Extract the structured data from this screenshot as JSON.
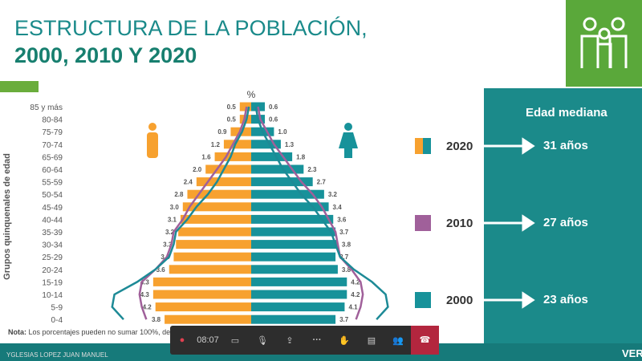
{
  "title": {
    "line1": "ESTRUCTURA DE LA  POBLACIÓN,",
    "line2": "2000, 2010 Y 2020"
  },
  "chart_data": {
    "type": "bar",
    "subtype": "population-pyramid",
    "title": "",
    "xlabel": "%",
    "ylabel": "Grupos quinquenales de edad",
    "categories": [
      "85 y más",
      "80-84",
      "75-79",
      "70-74",
      "65-69",
      "60-64",
      "55-59",
      "50-54",
      "45-49",
      "40-44",
      "35-39",
      "30-34",
      "25-29",
      "20-24",
      "15-19",
      "10-14",
      "5-9",
      "0-4"
    ],
    "series": [
      {
        "name": "2020",
        "sex": "hombres",
        "color": "#f7a12f",
        "values": [
          0.5,
          0.5,
          0.9,
          1.2,
          1.6,
          2.0,
          2.4,
          2.8,
          3.0,
          3.1,
          3.2,
          3.3,
          3.4,
          3.6,
          4.3,
          4.3,
          4.2,
          3.8
        ]
      },
      {
        "name": "2020",
        "sex": "mujeres",
        "color": "#17929a",
        "values": [
          0.6,
          0.6,
          1.0,
          1.3,
          1.8,
          2.3,
          2.7,
          3.2,
          3.4,
          3.6,
          3.7,
          3.8,
          3.7,
          3.8,
          4.2,
          4.2,
          4.1,
          3.7
        ]
      },
      {
        "name": "2010",
        "sex": "hombres",
        "color": "#a0609a",
        "values": [
          0.2,
          0.3,
          0.5,
          0.8,
          1.1,
          1.5,
          1.9,
          2.3,
          2.7,
          3.0,
          3.4,
          3.5,
          3.7,
          4.2,
          4.8,
          4.9,
          4.8,
          4.6
        ]
      },
      {
        "name": "2010",
        "sex": "mujeres",
        "color": "#a0609a",
        "values": [
          0.3,
          0.4,
          0.7,
          1.0,
          1.4,
          1.8,
          2.2,
          2.7,
          3.1,
          3.4,
          3.7,
          3.8,
          3.9,
          4.4,
          4.8,
          4.9,
          4.8,
          4.6
        ]
      },
      {
        "name": "2000",
        "sex": "hombres",
        "color": "#1d8a96",
        "values": [
          0.1,
          0.2,
          0.4,
          0.7,
          0.9,
          1.2,
          1.5,
          1.9,
          2.4,
          2.8,
          3.3,
          3.4,
          3.6,
          4.2,
          5.0,
          6.0,
          6.1,
          5.6
        ]
      },
      {
        "name": "2000",
        "sex": "mujeres",
        "color": "#1d8a96",
        "values": [
          0.2,
          0.3,
          0.5,
          0.8,
          1.1,
          1.4,
          1.8,
          2.2,
          2.7,
          3.1,
          3.5,
          3.7,
          3.9,
          4.5,
          5.3,
          5.9,
          6.0,
          5.5
        ]
      }
    ]
  },
  "legend": [
    {
      "year": "2020",
      "median": "31 años"
    },
    {
      "year": "2010",
      "median": "27 años"
    },
    {
      "year": "2000",
      "median": "23 años"
    }
  ],
  "panel_title": "Edad mediana",
  "note": {
    "bold": "Nota:",
    "text": " Los porcentajes pueden no sumar 100%, de"
  },
  "toolbar": {
    "timer": "08:07"
  },
  "footer": {
    "name": "YGLESIAS LOPEZ JUAN MANUEL",
    "right": "VER"
  },
  "colors": {
    "male": "#f7a12f",
    "female": "#17929a",
    "y2010": "#a0609a",
    "y2000": "#1d8a96",
    "panel": "#1b8a8a",
    "green": "#5aa83a"
  }
}
